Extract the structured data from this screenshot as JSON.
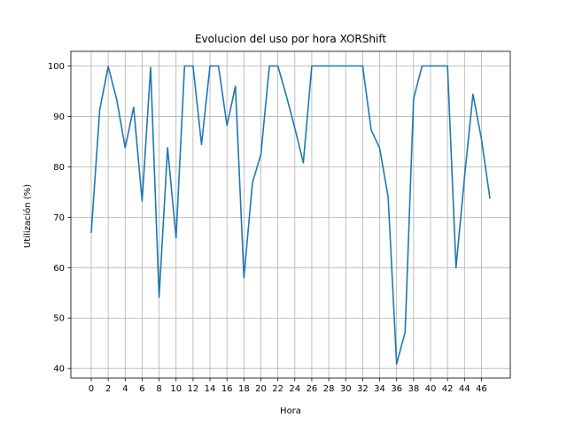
{
  "chart_data": {
    "type": "line",
    "title": "Evolucion del uso por hora XORShift",
    "xlabel": "Hora",
    "ylabel": "Utilización (%)",
    "xlim": [
      -2.4,
      49.4
    ],
    "ylim": [
      38.1,
      102.9
    ],
    "grid": true,
    "line_color": "#1f77b4",
    "xticks": [
      0,
      2,
      4,
      6,
      8,
      10,
      12,
      14,
      16,
      18,
      20,
      22,
      24,
      26,
      28,
      30,
      32,
      34,
      36,
      38,
      40,
      42,
      44,
      46
    ],
    "xticklabels": [
      "0",
      "2",
      "4",
      "6",
      "8",
      "10",
      "12",
      "14",
      "16",
      "18",
      "20",
      "22",
      "24",
      "26",
      "28",
      "30",
      "32",
      "34",
      "36",
      "38",
      "40",
      "42",
      "44",
      "46"
    ],
    "yticks": [
      40,
      50,
      60,
      70,
      80,
      90,
      100
    ],
    "yticklabels": [
      "40",
      "50",
      "60",
      "70",
      "80",
      "90",
      "100"
    ],
    "series": [
      {
        "x": [
          0,
          1,
          2,
          3,
          4,
          5,
          6,
          7,
          8,
          9,
          10,
          11,
          12,
          13,
          14,
          15,
          16,
          17,
          18,
          19,
          20,
          21,
          22,
          23,
          24,
          25,
          26,
          27,
          28,
          29,
          30,
          31,
          32,
          33,
          34,
          35,
          36,
          37,
          38,
          39,
          40,
          41,
          42,
          43,
          44,
          45,
          46,
          47
        ],
        "values": [
          66.9,
          91.3,
          99.9,
          93.4,
          83.8,
          91.8,
          73.2,
          99.7,
          54.1,
          83.8,
          65.9,
          100,
          100,
          84.4,
          100,
          100,
          88.2,
          96.0,
          58.0,
          76.8,
          82.5,
          100,
          100,
          94.1,
          87.7,
          80.8,
          100,
          100,
          100,
          100,
          100,
          100,
          100,
          87.3,
          83.7,
          74.0,
          40.9,
          47.2,
          93.5,
          100,
          100,
          100,
          100,
          60.0,
          77.9,
          94.4,
          85.5,
          73.7
        ]
      }
    ]
  }
}
